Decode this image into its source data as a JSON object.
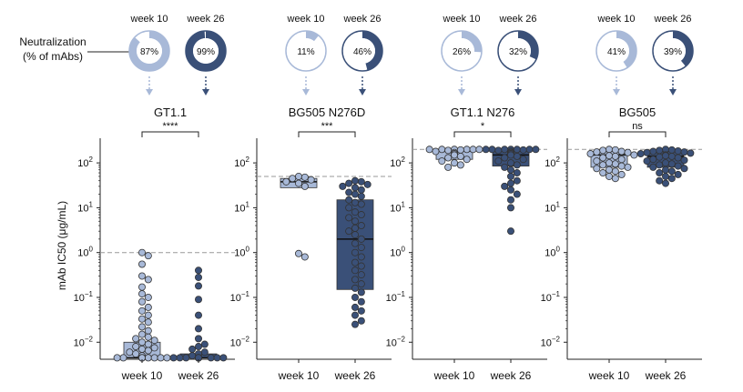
{
  "colors": {
    "light": "#a8b9d8",
    "dark": "#3a5078",
    "outline": "#444444",
    "ref_line": "#999999",
    "donut_empty": "#ffffff"
  },
  "neutralization_label": [
    "Neutralization",
    "(% of mAbs)"
  ],
  "y_axis_label": "mAb IC50 (μg/mL)",
  "y_ticks": [
    "10^2",
    "10^1",
    "10^0",
    "10^-1",
    "10^-2"
  ],
  "chart_data": [
    {
      "type": "box+swarm",
      "title": "GT1.1",
      "categories": [
        "week 10",
        "week 26"
      ],
      "significance": "****",
      "reference_line": 1.0,
      "ylim": [
        0.003,
        500
      ],
      "yscale": "log",
      "neutralization_pct": [
        87,
        99
      ],
      "neutralization_labels": [
        "87%",
        "99%"
      ],
      "box": [
        {
          "q1": 0.0045,
          "median": 0.0045,
          "q3": 0.01
        },
        {
          "q1": 0.0045,
          "median": 0.0045,
          "q3": 0.0055
        }
      ],
      "points": [
        [
          1.0,
          0.85,
          0.55,
          0.3,
          0.25,
          0.17,
          0.12,
          0.1,
          0.08,
          0.06,
          0.05,
          0.04,
          0.033,
          0.028,
          0.022,
          0.018,
          0.015,
          0.013,
          0.012,
          0.011,
          0.01,
          0.009,
          0.008,
          0.0075,
          0.007,
          0.0065,
          0.006,
          0.0055,
          0.005,
          0.0045,
          0.0045,
          0.0045,
          0.0045,
          0.0045,
          0.0045,
          0.0045,
          0.0045,
          0.0045,
          0.0045,
          0.0045
        ],
        [
          0.4,
          0.28,
          0.18,
          0.09,
          0.04,
          0.02,
          0.012,
          0.009,
          0.008,
          0.007,
          0.006,
          0.0055,
          0.005,
          0.0045,
          0.0045,
          0.0045,
          0.0045,
          0.0045,
          0.0045,
          0.0045,
          0.0045,
          0.0045,
          0.0045,
          0.0045,
          0.0045,
          0.0045,
          0.0045,
          0.0045
        ]
      ]
    },
    {
      "type": "box+swarm",
      "title": "BG505 N276D",
      "categories": [
        "week 10",
        "week 26"
      ],
      "significance": "***",
      "reference_line": 50,
      "ylim": [
        0.003,
        500
      ],
      "yscale": "log",
      "neutralization_pct": [
        11,
        46
      ],
      "neutralization_labels": [
        "11%",
        "46%"
      ],
      "box": [
        {
          "q1": 28,
          "median": 38,
          "q3": 45
        },
        {
          "q1": 0.15,
          "median": 2.0,
          "q3": 15
        }
      ],
      "points": [
        [
          50,
          48,
          45,
          42,
          38,
          35,
          30,
          0.95,
          0.8
        ],
        [
          40,
          38,
          35,
          33,
          30,
          28,
          25,
          22,
          20,
          18,
          15,
          13,
          12,
          10,
          8,
          7,
          6,
          5,
          4,
          3.5,
          3,
          2.5,
          2,
          1.6,
          1.3,
          1,
          0.8,
          0.6,
          0.5,
          0.4,
          0.32,
          0.25,
          0.2,
          0.16,
          0.13,
          0.1,
          0.08,
          0.06,
          0.05,
          0.04,
          0.03,
          0.025
        ]
      ]
    },
    {
      "type": "box+swarm",
      "title": "GT1.1 N276",
      "categories": [
        "week 10",
        "week 26"
      ],
      "significance": "*",
      "reference_line": 200,
      "ylim": [
        0.003,
        500
      ],
      "yscale": "log",
      "neutralization_pct": [
        26,
        32
      ],
      "neutralization_labels": [
        "26%",
        "32%"
      ],
      "box": [
        {
          "q1": 120,
          "median": 185,
          "q3": 200
        },
        {
          "q1": 85,
          "median": 150,
          "q3": 200
        }
      ],
      "points": [
        [
          200,
          200,
          200,
          200,
          200,
          200,
          195,
          190,
          180,
          170,
          160,
          150,
          140,
          130,
          120,
          110,
          100,
          90,
          80
        ],
        [
          200,
          200,
          200,
          200,
          200,
          200,
          200,
          195,
          190,
          180,
          170,
          160,
          150,
          140,
          130,
          120,
          110,
          100,
          90,
          80,
          70,
          60,
          50,
          40,
          35,
          30,
          25,
          20,
          15,
          10,
          3
        ]
      ]
    },
    {
      "type": "box+swarm",
      "title": "BG505",
      "categories": [
        "week 10",
        "week 26"
      ],
      "significance": "ns",
      "reference_line": 200,
      "ylim": [
        0.003,
        500
      ],
      "yscale": "log",
      "neutralization_pct": [
        41,
        39
      ],
      "neutralization_labels": [
        "41%",
        "39%"
      ],
      "box": [
        {
          "q1": 80,
          "median": 150,
          "q3": 180
        },
        {
          "q1": 80,
          "median": 140,
          "q3": 180
        }
      ],
      "points": [
        [
          200,
          195,
          190,
          180,
          175,
          170,
          160,
          150,
          145,
          140,
          130,
          120,
          110,
          100,
          95,
          90,
          85,
          80,
          75,
          70,
          65,
          60,
          55,
          50,
          45
        ],
        [
          200,
          195,
          190,
          185,
          180,
          175,
          170,
          165,
          160,
          150,
          145,
          140,
          135,
          130,
          120,
          115,
          110,
          100,
          95,
          90,
          85,
          80,
          75,
          70,
          65,
          60,
          55,
          50,
          45,
          40,
          35
        ]
      ]
    }
  ]
}
